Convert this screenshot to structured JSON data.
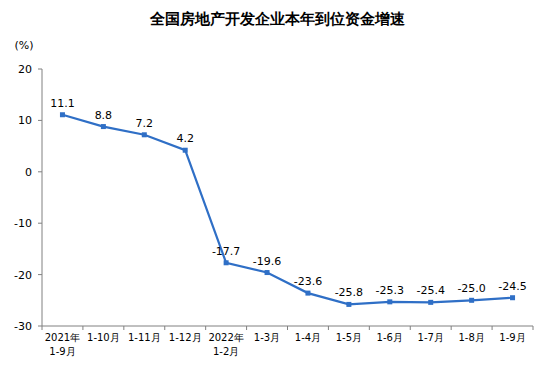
{
  "chart_data": {
    "type": "line",
    "title": "全国房地产开发企业本年到位资金增速",
    "y_label": "(%)",
    "categories": [
      "2021年\n1-9月",
      "1-10月",
      "1-11月",
      "1-12月",
      "2022年\n1-2月",
      "1-3月",
      "1-4月",
      "1-5月",
      "1-6月",
      "1-7月",
      "1-8月",
      "1-9月"
    ],
    "values": [
      11.1,
      8.8,
      7.2,
      4.2,
      -17.7,
      -19.6,
      -23.6,
      -25.8,
      -25.3,
      -25.4,
      -25.0,
      -24.5
    ],
    "value_labels": [
      "11.1",
      "8.8",
      "7.2",
      "4.2",
      "-17.7",
      "-19.6",
      "-23.6",
      "-25.8",
      "-25.3",
      "-25.4",
      "-25.0",
      "-24.5"
    ],
    "color": "#2f6fc6",
    "marker": "square",
    "data_labels": true,
    "grid": false,
    "ylim": [
      -30,
      20
    ],
    "yticks": [
      -30,
      -20,
      -10,
      0,
      10,
      20
    ]
  }
}
